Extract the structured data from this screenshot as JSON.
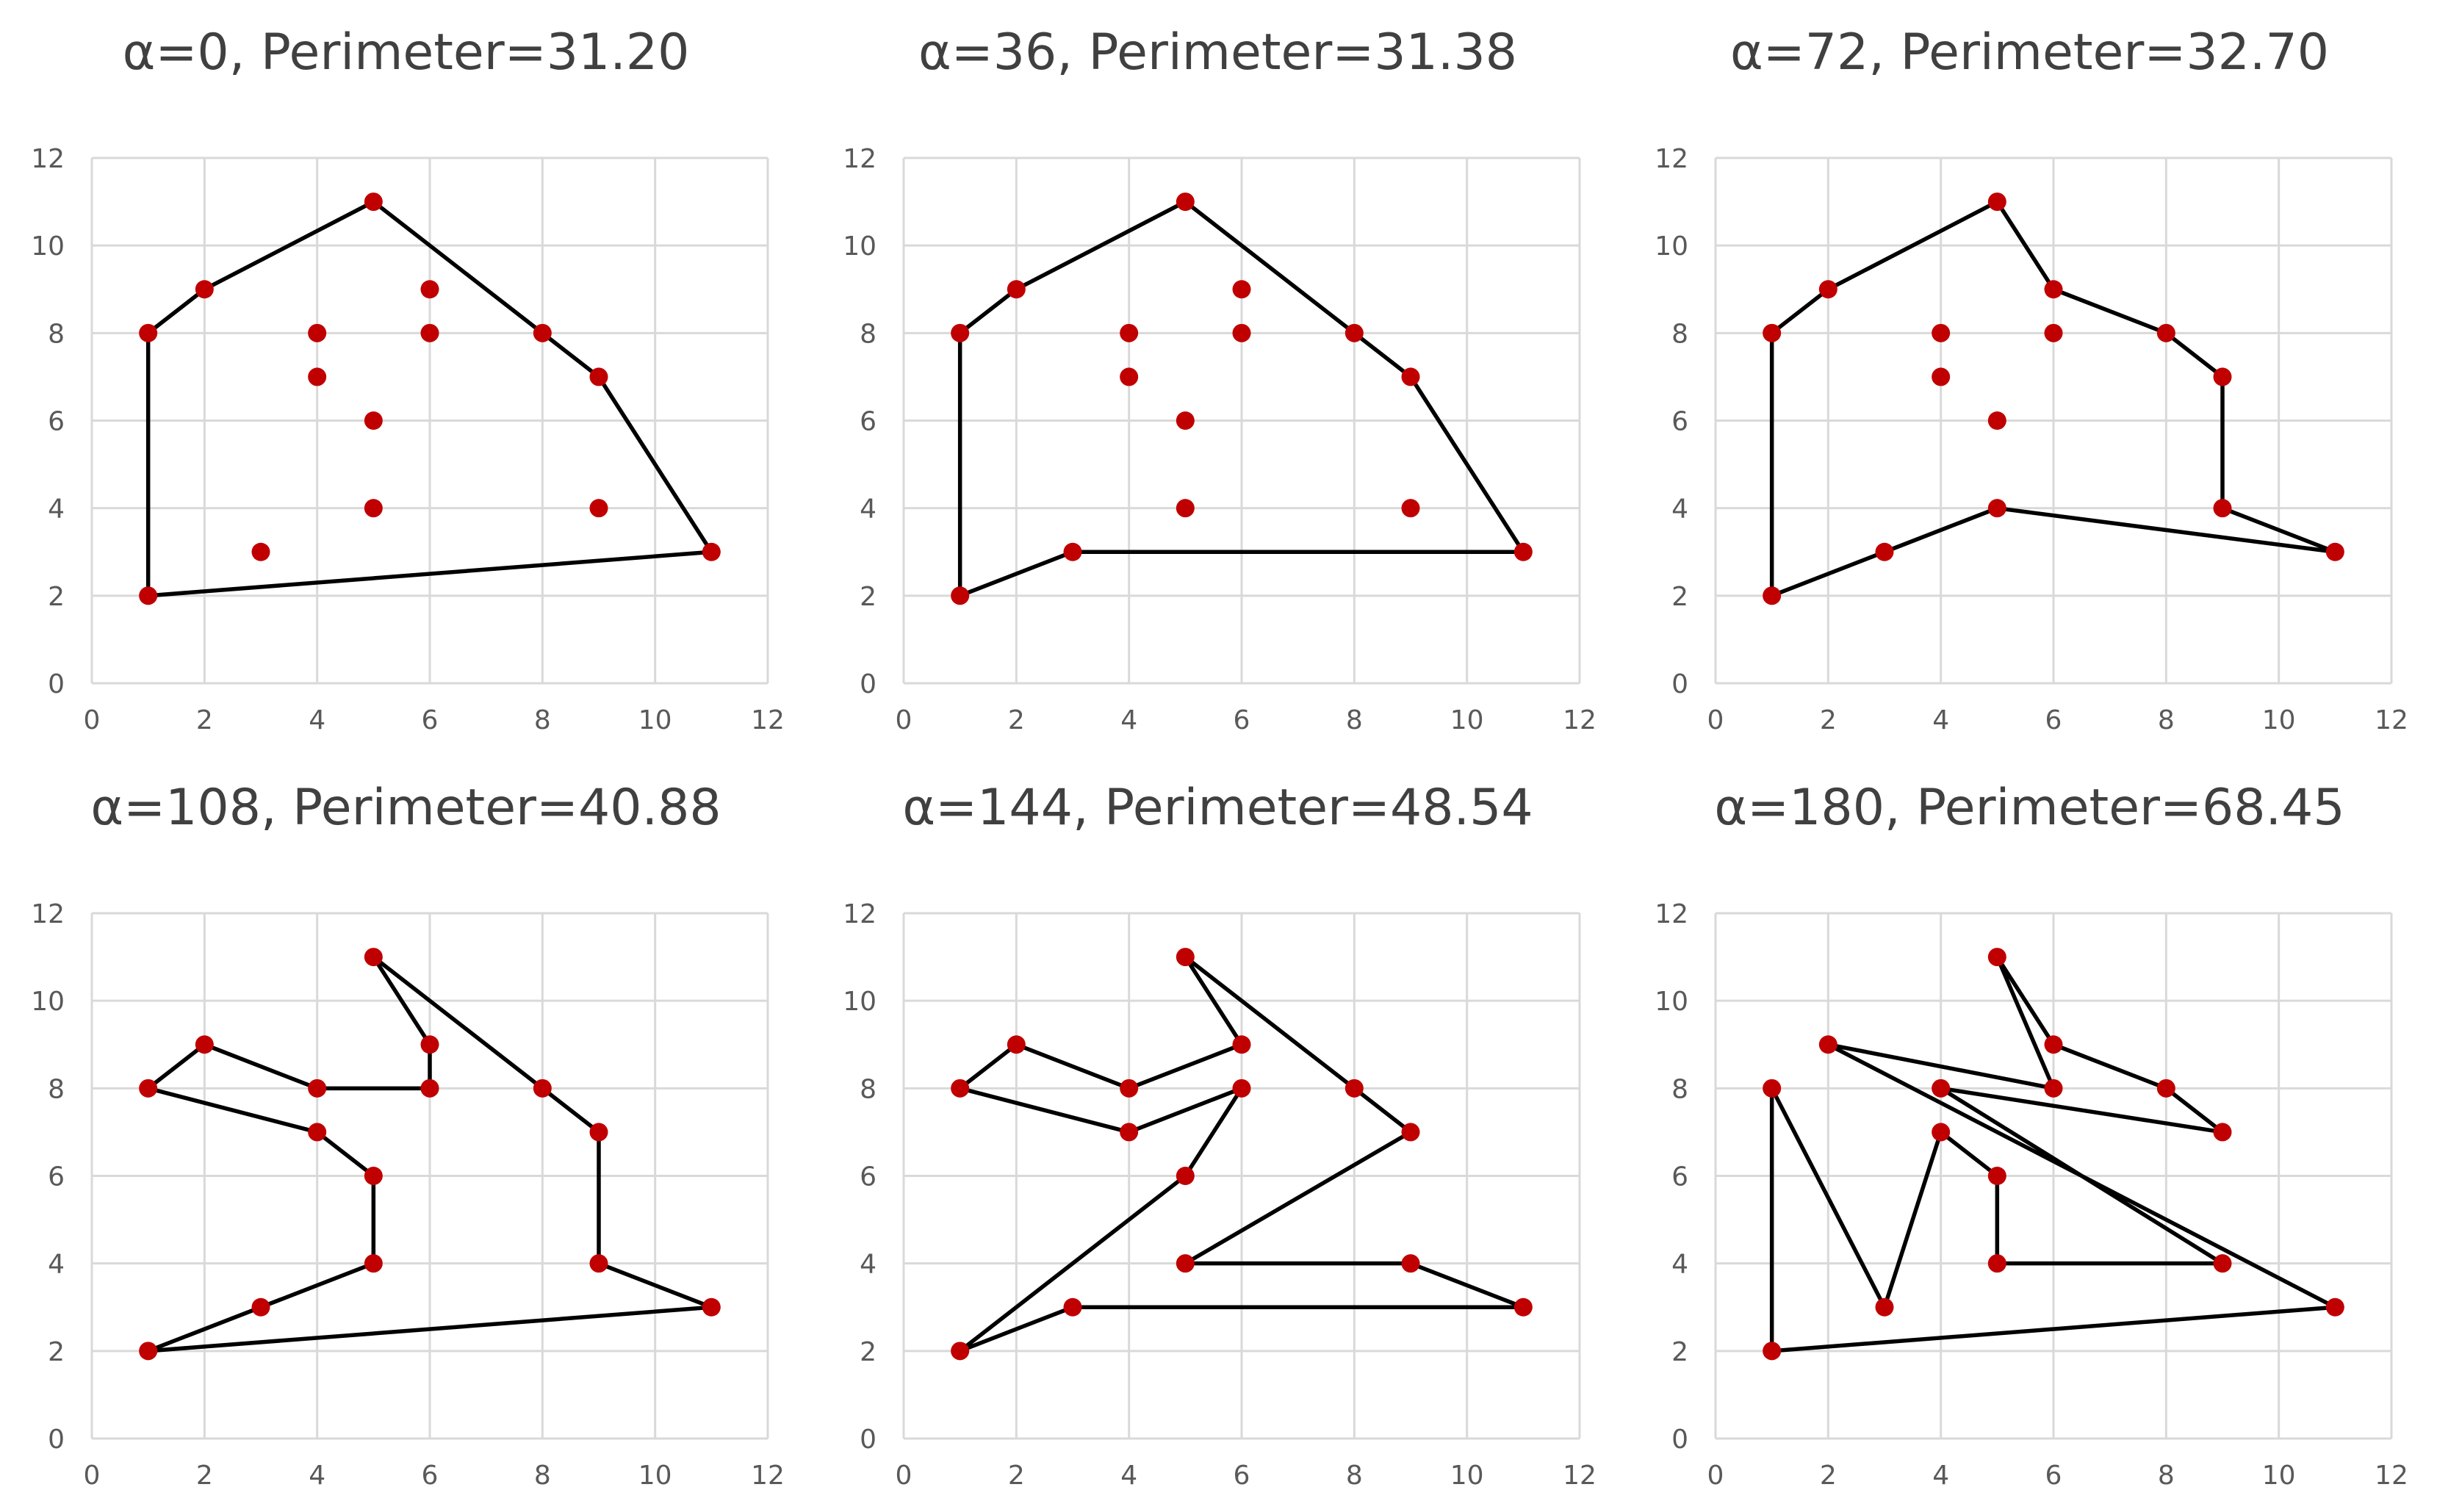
{
  "colors": {
    "point": "#c00000",
    "line": "#000000",
    "grid": "#d9d9d9",
    "tick_text": "#595959",
    "title_text": "#404040"
  },
  "chart_data": [
    {
      "type": "scatter",
      "title": "α=0, Perimeter=31.20",
      "xlim": [
        0,
        12
      ],
      "ylim": [
        0,
        12
      ],
      "xticks": [
        0,
        2,
        4,
        6,
        8,
        10,
        12
      ],
      "yticks": [
        0,
        2,
        4,
        6,
        8,
        10,
        12
      ],
      "grid": true,
      "points": [
        [
          1,
          2
        ],
        [
          1,
          8
        ],
        [
          2,
          9
        ],
        [
          3,
          3
        ],
        [
          4,
          7
        ],
        [
          4,
          8
        ],
        [
          5,
          4
        ],
        [
          5,
          6
        ],
        [
          5,
          11
        ],
        [
          6,
          8
        ],
        [
          6,
          9
        ],
        [
          8,
          8
        ],
        [
          9,
          4
        ],
        [
          9,
          7
        ],
        [
          11,
          3
        ]
      ],
      "polygon": [
        [
          1,
          2
        ],
        [
          1,
          8
        ],
        [
          2,
          9
        ],
        [
          5,
          11
        ],
        [
          8,
          8
        ],
        [
          9,
          7
        ],
        [
          11,
          3
        ]
      ]
    },
    {
      "type": "scatter",
      "title": "α=36, Perimeter=31.38",
      "xlim": [
        0,
        12
      ],
      "ylim": [
        0,
        12
      ],
      "xticks": [
        0,
        2,
        4,
        6,
        8,
        10,
        12
      ],
      "yticks": [
        0,
        2,
        4,
        6,
        8,
        10,
        12
      ],
      "grid": true,
      "points": [
        [
          1,
          2
        ],
        [
          1,
          8
        ],
        [
          2,
          9
        ],
        [
          3,
          3
        ],
        [
          4,
          7
        ],
        [
          4,
          8
        ],
        [
          5,
          4
        ],
        [
          5,
          6
        ],
        [
          5,
          11
        ],
        [
          6,
          8
        ],
        [
          6,
          9
        ],
        [
          8,
          8
        ],
        [
          9,
          4
        ],
        [
          9,
          7
        ],
        [
          11,
          3
        ]
      ],
      "polygon": [
        [
          1,
          2
        ],
        [
          1,
          8
        ],
        [
          2,
          9
        ],
        [
          5,
          11
        ],
        [
          8,
          8
        ],
        [
          9,
          7
        ],
        [
          11,
          3
        ],
        [
          3,
          3
        ]
      ]
    },
    {
      "type": "scatter",
      "title": "α=72, Perimeter=32.70",
      "xlim": [
        0,
        12
      ],
      "ylim": [
        0,
        12
      ],
      "xticks": [
        0,
        2,
        4,
        6,
        8,
        10,
        12
      ],
      "yticks": [
        0,
        2,
        4,
        6,
        8,
        10,
        12
      ],
      "grid": true,
      "points": [
        [
          1,
          2
        ],
        [
          1,
          8
        ],
        [
          2,
          9
        ],
        [
          3,
          3
        ],
        [
          4,
          7
        ],
        [
          4,
          8
        ],
        [
          5,
          4
        ],
        [
          5,
          6
        ],
        [
          5,
          11
        ],
        [
          6,
          8
        ],
        [
          6,
          9
        ],
        [
          8,
          8
        ],
        [
          9,
          4
        ],
        [
          9,
          7
        ],
        [
          11,
          3
        ]
      ],
      "polygon": [
        [
          1,
          2
        ],
        [
          1,
          8
        ],
        [
          2,
          9
        ],
        [
          5,
          11
        ],
        [
          6,
          9
        ],
        [
          8,
          8
        ],
        [
          9,
          7
        ],
        [
          9,
          4
        ],
        [
          11,
          3
        ],
        [
          5,
          4
        ],
        [
          3,
          3
        ]
      ]
    },
    {
      "type": "scatter",
      "title": "α=108, Perimeter=40.88",
      "xlim": [
        0,
        12
      ],
      "ylim": [
        0,
        12
      ],
      "xticks": [
        0,
        2,
        4,
        6,
        8,
        10,
        12
      ],
      "yticks": [
        0,
        2,
        4,
        6,
        8,
        10,
        12
      ],
      "grid": true,
      "points": [
        [
          1,
          2
        ],
        [
          1,
          8
        ],
        [
          2,
          9
        ],
        [
          3,
          3
        ],
        [
          4,
          7
        ],
        [
          4,
          8
        ],
        [
          5,
          4
        ],
        [
          5,
          6
        ],
        [
          5,
          11
        ],
        [
          6,
          8
        ],
        [
          6,
          9
        ],
        [
          8,
          8
        ],
        [
          9,
          4
        ],
        [
          9,
          7
        ],
        [
          11,
          3
        ]
      ],
      "polygon": [
        [
          1,
          2
        ],
        [
          3,
          3
        ],
        [
          5,
          4
        ],
        [
          5,
          6
        ],
        [
          4,
          7
        ],
        [
          1,
          8
        ],
        [
          2,
          9
        ],
        [
          4,
          8
        ],
        [
          6,
          8
        ],
        [
          6,
          9
        ],
        [
          5,
          11
        ],
        [
          8,
          8
        ],
        [
          9,
          7
        ],
        [
          9,
          4
        ],
        [
          11,
          3
        ]
      ]
    },
    {
      "type": "scatter",
      "title": "α=144, Perimeter=48.54",
      "xlim": [
        0,
        12
      ],
      "ylim": [
        0,
        12
      ],
      "xticks": [
        0,
        2,
        4,
        6,
        8,
        10,
        12
      ],
      "yticks": [
        0,
        2,
        4,
        6,
        8,
        10,
        12
      ],
      "grid": true,
      "points": [
        [
          1,
          2
        ],
        [
          1,
          8
        ],
        [
          2,
          9
        ],
        [
          3,
          3
        ],
        [
          4,
          7
        ],
        [
          4,
          8
        ],
        [
          5,
          4
        ],
        [
          5,
          6
        ],
        [
          5,
          11
        ],
        [
          6,
          8
        ],
        [
          6,
          9
        ],
        [
          8,
          8
        ],
        [
          9,
          4
        ],
        [
          9,
          7
        ],
        [
          11,
          3
        ]
      ],
      "polygon": [
        [
          1,
          2
        ],
        [
          5,
          6
        ],
        [
          6,
          8
        ],
        [
          4,
          7
        ],
        [
          1,
          8
        ],
        [
          2,
          9
        ],
        [
          4,
          8
        ],
        [
          6,
          9
        ],
        [
          5,
          11
        ],
        [
          8,
          8
        ],
        [
          9,
          7
        ],
        [
          5,
          4
        ],
        [
          9,
          4
        ],
        [
          11,
          3
        ],
        [
          3,
          3
        ]
      ]
    },
    {
      "type": "scatter",
      "title": "α=180, Perimeter=68.45",
      "xlim": [
        0,
        12
      ],
      "ylim": [
        0,
        12
      ],
      "xticks": [
        0,
        2,
        4,
        6,
        8,
        10,
        12
      ],
      "yticks": [
        0,
        2,
        4,
        6,
        8,
        10,
        12
      ],
      "grid": true,
      "points": [
        [
          1,
          2
        ],
        [
          1,
          8
        ],
        [
          2,
          9
        ],
        [
          3,
          3
        ],
        [
          4,
          7
        ],
        [
          4,
          8
        ],
        [
          5,
          4
        ],
        [
          5,
          6
        ],
        [
          5,
          11
        ],
        [
          6,
          8
        ],
        [
          6,
          9
        ],
        [
          8,
          8
        ],
        [
          9,
          4
        ],
        [
          9,
          7
        ],
        [
          11,
          3
        ]
      ],
      "polygon": [
        [
          1,
          2
        ],
        [
          1,
          8
        ],
        [
          3,
          3
        ],
        [
          4,
          7
        ],
        [
          5,
          6
        ],
        [
          5,
          4
        ],
        [
          9,
          4
        ],
        [
          4,
          8
        ],
        [
          9,
          7
        ],
        [
          8,
          8
        ],
        [
          6,
          9
        ],
        [
          5,
          11
        ],
        [
          6,
          8
        ],
        [
          2,
          9
        ],
        [
          11,
          3
        ]
      ]
    }
  ]
}
